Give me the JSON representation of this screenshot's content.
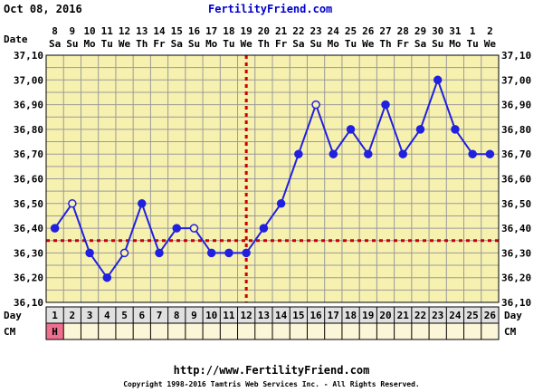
{
  "header": {
    "date": "Oct 08, 2016",
    "site": "FertilityFriend.com"
  },
  "footer": {
    "url": "http://www.FertilityFriend.com",
    "copyright": "Copyright 1998-2016 Tamtris Web Services Inc. - All Rights Reserved."
  },
  "row_labels": {
    "date": "Date",
    "day": "Day",
    "cm": "CM"
  },
  "colors": {
    "plot_bg": "#f7f1b0",
    "grid": "#9a9a9a",
    "line": "#2020e0",
    "reference": "#cc0000",
    "day_row_bg": "#e0e0e0",
    "cm_row_bg": "#fbf6d8",
    "menses_bg": "#ee6f8e"
  },
  "chart_data": {
    "type": "line",
    "ylim": [
      36.1,
      37.1
    ],
    "y_ticks": [
      "36,10",
      "36,20",
      "36,30",
      "36,40",
      "36,50",
      "36,60",
      "36,70",
      "36,80",
      "36,90",
      "37,00",
      "37,10"
    ],
    "dates": [
      "8",
      "9",
      "10",
      "11",
      "12",
      "13",
      "14",
      "15",
      "16",
      "17",
      "18",
      "19",
      "20",
      "21",
      "22",
      "23",
      "24",
      "25",
      "26",
      "27",
      "28",
      "29",
      "30",
      "31",
      "1",
      "2"
    ],
    "weekdays": [
      "Sa",
      "Su",
      "Mo",
      "Tu",
      "We",
      "Th",
      "Fr",
      "Sa",
      "Su",
      "Mo",
      "Tu",
      "We",
      "Th",
      "Fr",
      "Sa",
      "Su",
      "Mo",
      "Tu",
      "We",
      "Th",
      "Fr",
      "Sa",
      "Su",
      "Mo",
      "Tu",
      "We"
    ],
    "cycle_days": [
      "1",
      "2",
      "3",
      "4",
      "5",
      "6",
      "7",
      "8",
      "9",
      "10",
      "11",
      "12",
      "13",
      "14",
      "15",
      "16",
      "17",
      "18",
      "19",
      "20",
      "21",
      "22",
      "23",
      "24",
      "25",
      "26"
    ],
    "series": [
      {
        "values": [
          36.4,
          36.5,
          36.3,
          36.2,
          36.3,
          36.5,
          36.3,
          36.4,
          36.4,
          36.3,
          36.3,
          36.3,
          36.4,
          36.5,
          36.7,
          36.9,
          36.7,
          36.8,
          36.7,
          36.9,
          36.7,
          36.8,
          37.0,
          36.8,
          36.7,
          36.7
        ],
        "markers": [
          "filled",
          "open",
          "filled",
          "filled",
          "open",
          "filled",
          "filled",
          "filled",
          "open",
          "filled",
          "filled",
          "filled",
          "filled",
          "filled",
          "filled",
          "open",
          "filled",
          "filled",
          "filled",
          "filled",
          "filled",
          "filled",
          "filled",
          "filled",
          "filled",
          "filled"
        ]
      }
    ],
    "coverline": 36.35,
    "ovulation_day": 12,
    "cm": [
      "H",
      "",
      "",
      "",
      "",
      "",
      "",
      "",
      "",
      "",
      "",
      "",
      "",
      "",
      "",
      "",
      "",
      "",
      "",
      "",
      "",
      "",
      "",
      "",
      "",
      ""
    ]
  }
}
